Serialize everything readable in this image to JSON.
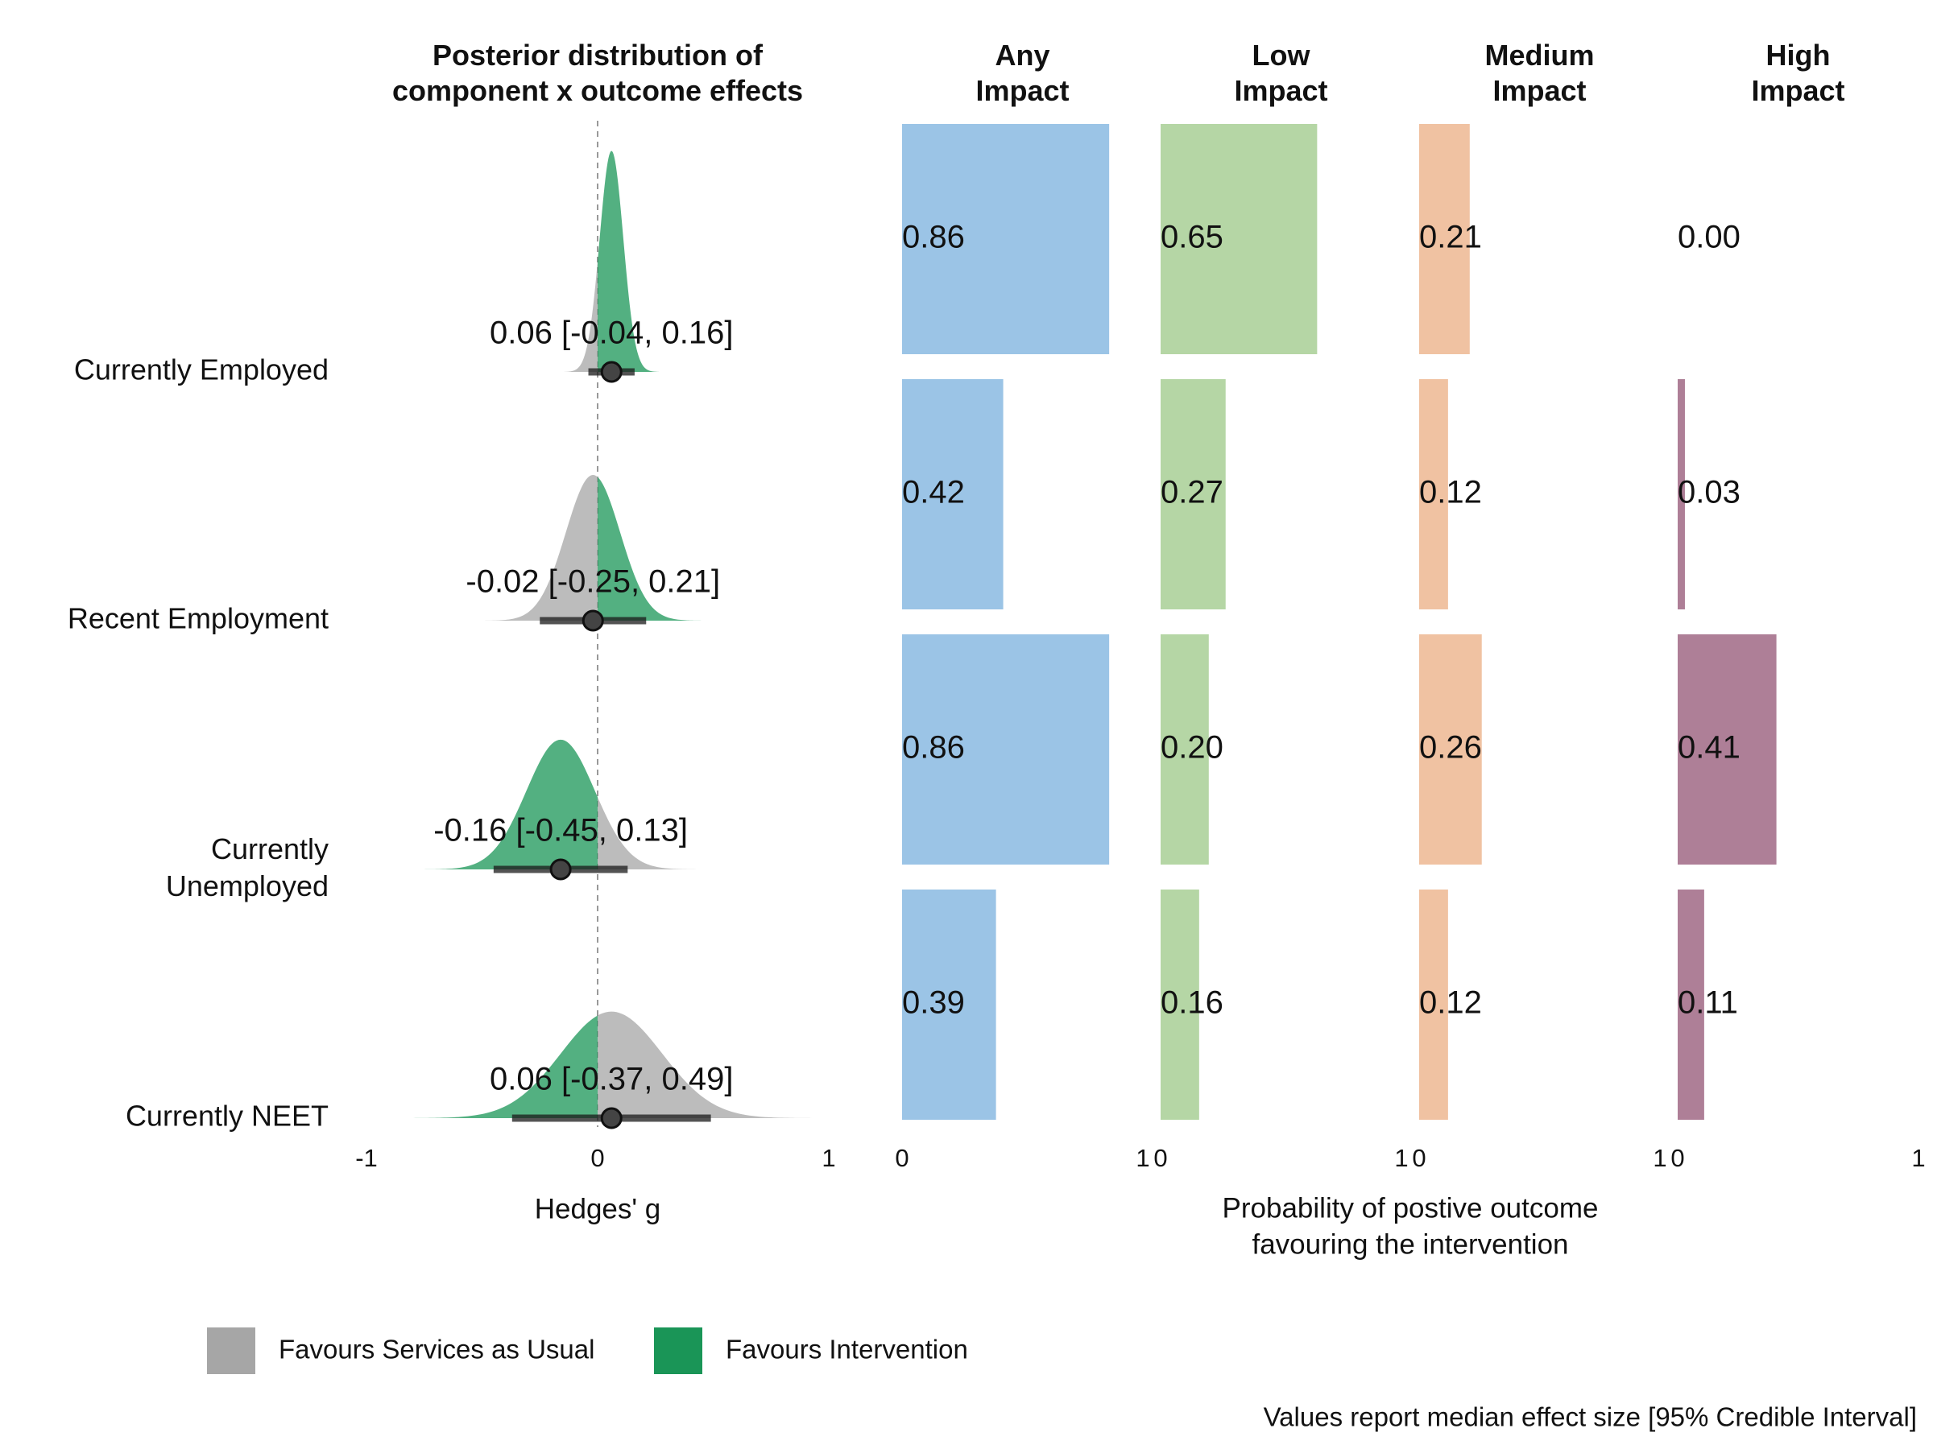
{
  "chart_data": [
    {
      "type": "halfeye",
      "title": "Posterior distribution of\ncomponent x outcome effects",
      "categories": [
        "Currently Employed",
        "Recent Employment",
        "Currently\nUnemployed",
        "Currently NEET"
      ],
      "medians": [
        0.06,
        -0.02,
        -0.16,
        0.06
      ],
      "lower": [
        -0.04,
        -0.25,
        -0.45,
        -0.37
      ],
      "upper": [
        0.16,
        0.21,
        0.13,
        0.49
      ],
      "value_labels": [
        "0.06 [-0.04, 0.16]",
        "-0.02 [-0.25, 0.21]",
        "-0.16 [-0.45, 0.13]",
        "0.06 [-0.37, 0.49]"
      ],
      "intervention_side": [
        "right",
        "right",
        "left",
        "left"
      ],
      "xlabel": "Hedges' g",
      "xlim": [
        -1,
        1
      ],
      "xticks": [
        -1,
        0,
        1
      ],
      "legend": [
        {
          "name": "Favours Services as Usual",
          "color": "#a6a6a6"
        },
        {
          "name": "Favours Intervention",
          "color": "#1a9557"
        }
      ]
    },
    {
      "type": "bar",
      "title": "Any\nImpact",
      "values": [
        0.86,
        0.42,
        0.86,
        0.39
      ],
      "value_labels": [
        "0.86",
        "0.42",
        "0.86",
        "0.39"
      ],
      "color": "#9bc4e6",
      "xlim": [
        0,
        1
      ],
      "xticks": [
        0,
        1
      ]
    },
    {
      "type": "bar",
      "title": "Low\nImpact",
      "values": [
        0.65,
        0.27,
        0.2,
        0.16
      ],
      "value_labels": [
        "0.65",
        "0.27",
        "0.20",
        "0.16"
      ],
      "color": "#b5d6a5",
      "xlim": [
        0,
        1
      ],
      "xticks": [
        0,
        1
      ]
    },
    {
      "type": "bar",
      "title": "Medium\nImpact",
      "values": [
        0.21,
        0.12,
        0.26,
        0.12
      ],
      "value_labels": [
        "0.21",
        "0.12",
        "0.26",
        "0.12"
      ],
      "color": "#f0c2a2",
      "xlim": [
        0,
        1
      ],
      "xticks": [
        0,
        1
      ]
    },
    {
      "type": "bar",
      "title": "High\nImpact",
      "values": [
        0.0,
        0.03,
        0.41,
        0.11
      ],
      "value_labels": [
        "0.00",
        "0.03",
        "0.41",
        "0.11"
      ],
      "color": "#ae7f97",
      "xlim": [
        0,
        1
      ],
      "xticks": [
        0,
        1
      ]
    }
  ],
  "bars_xlabel": "Probability of postive outcome\nfavouring the intervention",
  "caption": "Values report median effect size [95% Credible Interval]"
}
